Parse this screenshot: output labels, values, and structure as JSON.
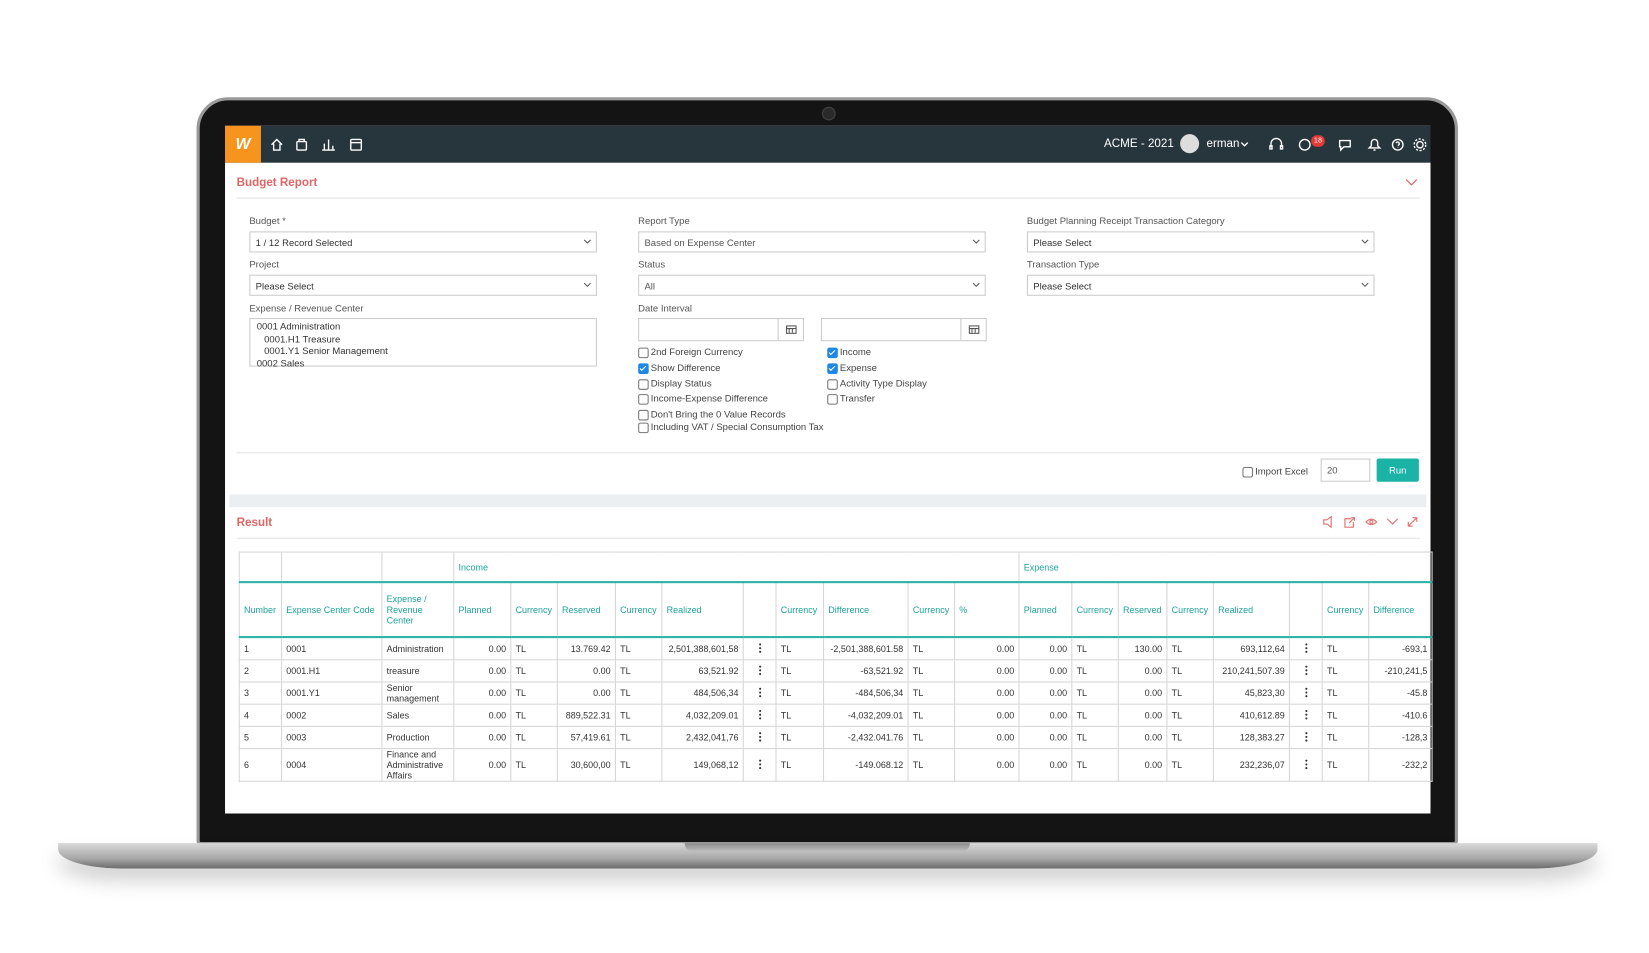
{
  "header": {
    "logo": "W",
    "company": "ACME - 2021",
    "user": "erman",
    "notifications": "18"
  },
  "form": {
    "title": "Budget Report",
    "budget": {
      "label": "Budget *",
      "value": "1 / 12 Record Selected"
    },
    "project": {
      "label": "Project",
      "value": "Please Select"
    },
    "center": {
      "label": "Expense / Revenue Center",
      "items": [
        "0001 Administration",
        "0001.H1 Treasure",
        "0001.Y1 Senior Management",
        "0002 Sales"
      ]
    },
    "report_type": {
      "label": "Report Type",
      "value": "Based on Expense Center"
    },
    "status": {
      "label": "Status",
      "value": "All"
    },
    "date_interval": {
      "label": "Date Interval"
    },
    "category": {
      "label": "Budget Planning Receipt Transaction Category",
      "value": "Please Select"
    },
    "transaction_type": {
      "label": "Transaction Type",
      "value": "Please Select"
    },
    "options_left": [
      {
        "label": "2nd Foreign Currency",
        "checked": false
      },
      {
        "label": "Show Difference",
        "checked": true
      },
      {
        "label": "Display Status",
        "checked": false
      },
      {
        "label": "Income-Expense Difference",
        "checked": false
      },
      {
        "label": "Don't Bring the 0 Value Records",
        "checked": false
      },
      {
        "label": "Including VAT / Special Consumption Tax",
        "checked": false
      }
    ],
    "options_right": [
      {
        "label": "Income",
        "checked": true
      },
      {
        "label": "Expense",
        "checked": true
      },
      {
        "label": "Activity Type Display",
        "checked": false
      },
      {
        "label": "Transfer",
        "checked": false
      }
    ],
    "import_excel": {
      "label": "Import Excel",
      "checked": false
    },
    "page_size": "20",
    "run": "Run"
  },
  "result": {
    "title": "Result",
    "groups": [
      "Income",
      "Expense"
    ],
    "columns": [
      "Number",
      "Expense Center Code",
      "Expense / Revenue Center",
      "Planned",
      "Currency",
      "Reserved",
      "Currency",
      "Realized",
      "Currency",
      "Difference",
      "Currency",
      "%",
      "Planned",
      "Currency",
      "Reserved",
      "Currency",
      "Realized",
      "Currency",
      "Difference"
    ],
    "rows": [
      [
        "1",
        "0001",
        "Administration",
        "0.00",
        "TL",
        "13.769.42",
        "TL",
        "2,501,388,601,58",
        "TL",
        "-2,501,388,601.58",
        "TL",
        "0.00",
        "0.00",
        "TL",
        "130.00",
        "TL",
        "693,112,64",
        "TL",
        "-693,1"
      ],
      [
        "2",
        "0001.H1",
        "treasure",
        "0.00",
        "TL",
        "0.00",
        "TL",
        "63,521.92",
        "TL",
        "-63,521.92",
        "TL",
        "0.00",
        "0.00",
        "TL",
        "0.00",
        "TL",
        "210,241,507.39",
        "TL",
        "-210,241,5"
      ],
      [
        "3",
        "0001.Y1",
        "Senior management",
        "0.00",
        "TL",
        "0.00",
        "TL",
        "484,506,34",
        "TL",
        "-484,506,34",
        "TL",
        "0.00",
        "0.00",
        "TL",
        "0.00",
        "TL",
        "45,823,30",
        "TL",
        "-45.8"
      ],
      [
        "4",
        "0002",
        "Sales",
        "0.00",
        "TL",
        "889,522.31",
        "TL",
        "4,032,209.01",
        "TL",
        "-4,032,209.01",
        "TL",
        "0.00",
        "0.00",
        "TL",
        "0.00",
        "TL",
        "410,612.89",
        "TL",
        "-410.6"
      ],
      [
        "5",
        "0003",
        "Production",
        "0.00",
        "TL",
        "57,419.61",
        "TL",
        "2,432,041,76",
        "TL",
        "-2,432.041.76",
        "TL",
        "0.00",
        "0.00",
        "TL",
        "0.00",
        "TL",
        "128,383.27",
        "TL",
        "-128,3"
      ],
      [
        "6",
        "0004",
        "Finance and Administrative Affairs",
        "0.00",
        "TL",
        "30,600,00",
        "TL",
        "149,068,12",
        "TL",
        "-149.068.12",
        "TL",
        "0.00",
        "0.00",
        "TL",
        "0.00",
        "TL",
        "232,236,07",
        "TL",
        "-232,2"
      ]
    ]
  }
}
